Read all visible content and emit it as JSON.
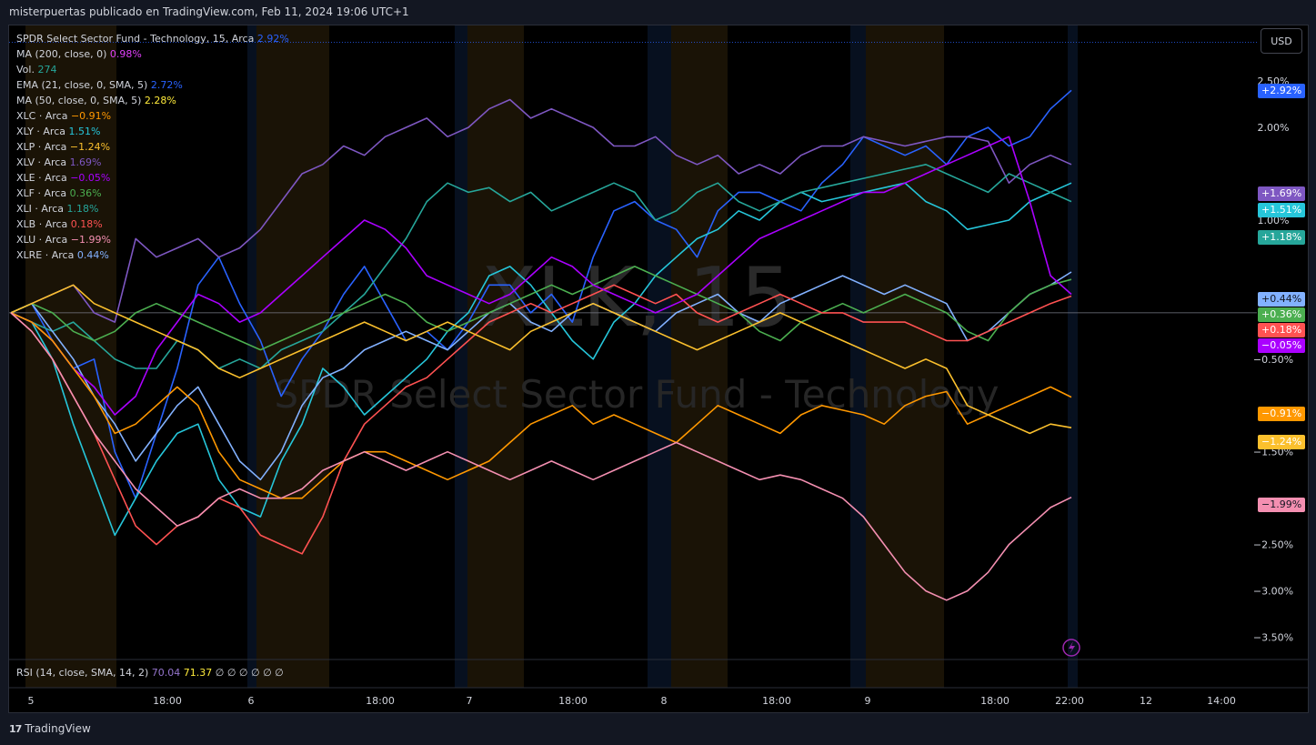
{
  "header": {
    "text": "misterpuertas publicado en TradingView.com, Feb 11, 2024 19:06 UTC+1"
  },
  "currency": "USD",
  "watermark": {
    "line1": "XLK, 15",
    "line2": "SPDR Select Sector Fund - Technology"
  },
  "legend": [
    {
      "name": "SPDR Select Sector Fund - Technology, 15, Arca",
      "value": "2.92%",
      "color": "#2962ff"
    },
    {
      "name": "MA (200, close, 0)",
      "value": "0.98%",
      "color": "#e040fb"
    },
    {
      "name": "Vol.",
      "value": "274",
      "color": "#26a69a"
    },
    {
      "name": "EMA (21, close, 0, SMA, 5)",
      "value": "2.72%",
      "color": "#2962ff"
    },
    {
      "name": "MA (50, close, 0, SMA, 5)",
      "value": "2.28%",
      "color": "#ffeb3b"
    },
    {
      "name": "XLC · Arca",
      "value": "−0.91%",
      "color": "#ff9800"
    },
    {
      "name": "XLY · Arca",
      "value": "1.51%",
      "color": "#26c6da"
    },
    {
      "name": "XLP · Arca",
      "value": "−1.24%",
      "color": "#fbc02d"
    },
    {
      "name": "XLV · Arca",
      "value": "1.69%",
      "color": "#7e57c2"
    },
    {
      "name": "XLE · Arca",
      "value": "−0.05%",
      "color": "#aa00ff"
    },
    {
      "name": "XLF · Arca",
      "value": "0.36%",
      "color": "#4caf50"
    },
    {
      "name": "XLI · Arca",
      "value": "1.18%",
      "color": "#26a69a"
    },
    {
      "name": "XLB · Arca",
      "value": "0.18%",
      "color": "#ff5252"
    },
    {
      "name": "XLU · Arca",
      "value": "−1.99%",
      "color": "#f48fb1"
    },
    {
      "name": "XLRE · Arca",
      "value": "0.44%",
      "color": "#82b1ff"
    }
  ],
  "rsi_legend": {
    "name": "RSI (14, close, SMA, 14, 2)",
    "value1": "70.04",
    "value2": "71.37",
    "rest": "∅ ∅ ∅ ∅ ∅ ∅"
  },
  "footer": {
    "brand": "TradingView"
  },
  "chart_data": {
    "type": "line",
    "y_unit": "%",
    "ylim": [
      -3.75,
      3.1
    ],
    "y_ticks": [
      2.5,
      2.0,
      1.0,
      -0.5,
      -1.5,
      -2.5,
      -3.0,
      -3.5
    ],
    "y_tick_labels": [
      "2.50%",
      "2.00%",
      "1.00%",
      "−0.50%",
      "−1.50%",
      "−2.50%",
      "−3.00%",
      "−3.50%"
    ],
    "x_ticks": [
      "5",
      "18:00",
      "6",
      "18:00",
      "7",
      "18:00",
      "8",
      "18:00",
      "9",
      "18:00",
      "22:00",
      "12",
      "14:00"
    ],
    "x_labels_idx": [
      0,
      7,
      12,
      19,
      24,
      31,
      36,
      43,
      48,
      55,
      58,
      62,
      66
    ],
    "n_points": 72,
    "series": [
      {
        "name": "XLK",
        "color": "#2962ff",
        "label": "+2.92%",
        "last": 2.92,
        "values": [
          0,
          0.1,
          -0.3,
          -0.6,
          -0.5,
          -1.5,
          -2.0,
          -1.3,
          -0.6,
          0.3,
          0.6,
          0.1,
          -0.3,
          -0.9,
          -0.5,
          -0.2,
          0.2,
          0.5,
          0.1,
          -0.3,
          -0.2,
          -0.4,
          -0.1,
          0.3,
          0.3,
          0.0,
          0.2,
          -0.1,
          0.6,
          1.1,
          1.2,
          1.0,
          0.9,
          0.6,
          1.1,
          1.3,
          1.3,
          1.2,
          1.1,
          1.4,
          1.6,
          1.9,
          1.8,
          1.7,
          1.8,
          1.6,
          1.9,
          2.0,
          1.8,
          1.9,
          2.2,
          2.4,
          2.6,
          2.7,
          2.8,
          2.9,
          2.92,
          2.88,
          2.92,
          2.92,
          2.92,
          2.92,
          2.92,
          2.92,
          2.92,
          2.92,
          2.92,
          2.92,
          2.92,
          2.92,
          2.92,
          2.92
        ]
      },
      {
        "name": "XLV",
        "color": "#7e57c2",
        "label": "+1.69%",
        "last": 1.69,
        "values": [
          0,
          0.1,
          0.2,
          0.3,
          0.0,
          -0.1,
          0.8,
          0.6,
          0.7,
          0.8,
          0.6,
          0.7,
          0.9,
          1.2,
          1.5,
          1.6,
          1.8,
          1.7,
          1.9,
          2.0,
          2.1,
          1.9,
          2.0,
          2.2,
          2.3,
          2.1,
          2.2,
          2.1,
          2.0,
          1.8,
          1.8,
          1.9,
          1.7,
          1.6,
          1.7,
          1.5,
          1.6,
          1.5,
          1.7,
          1.8,
          1.8,
          1.9,
          1.85,
          1.8,
          1.85,
          1.9,
          1.9,
          1.85,
          1.4,
          1.6,
          1.7,
          1.6,
          1.5,
          1.6,
          1.6,
          1.69,
          1.69,
          1.69,
          1.69,
          1.69,
          1.69,
          1.69,
          1.69,
          1.69,
          1.69,
          1.69,
          1.69,
          1.69,
          1.69,
          1.69,
          1.69,
          1.69
        ]
      },
      {
        "name": "XLY",
        "color": "#26c6da",
        "label": "+1.51%",
        "last": 1.51,
        "values": [
          0,
          -0.1,
          -0.5,
          -1.2,
          -1.8,
          -2.4,
          -2.0,
          -1.6,
          -1.3,
          -1.2,
          -1.8,
          -2.1,
          -2.2,
          -1.6,
          -1.2,
          -0.6,
          -0.8,
          -1.1,
          -0.9,
          -0.7,
          -0.5,
          -0.2,
          0.0,
          0.4,
          0.5,
          0.3,
          0.0,
          -0.3,
          -0.5,
          -0.1,
          0.1,
          0.4,
          0.6,
          0.8,
          0.9,
          1.1,
          1.0,
          1.2,
          1.3,
          1.2,
          1.25,
          1.3,
          1.35,
          1.4,
          1.2,
          1.1,
          0.9,
          0.95,
          1.0,
          1.2,
          1.3,
          1.4,
          1.51,
          1.51,
          1.51,
          1.51,
          1.51,
          1.51,
          1.51,
          1.51,
          1.51,
          1.51,
          1.51,
          1.51,
          1.51,
          1.51,
          1.51,
          1.51,
          1.51,
          1.51,
          1.51,
          1.51
        ]
      },
      {
        "name": "XLI",
        "color": "#26a69a",
        "label": "+1.18%",
        "last": 1.18,
        "values": [
          0,
          -0.1,
          -0.2,
          -0.1,
          -0.3,
          -0.5,
          -0.6,
          -0.6,
          -0.3,
          -0.4,
          -0.6,
          -0.5,
          -0.6,
          -0.4,
          -0.3,
          -0.2,
          0.0,
          0.2,
          0.5,
          0.8,
          1.2,
          1.4,
          1.3,
          1.35,
          1.2,
          1.3,
          1.1,
          1.2,
          1.3,
          1.4,
          1.3,
          1.0,
          1.1,
          1.3,
          1.4,
          1.2,
          1.1,
          1.2,
          1.3,
          1.35,
          1.4,
          1.45,
          1.5,
          1.55,
          1.6,
          1.5,
          1.4,
          1.3,
          1.5,
          1.4,
          1.3,
          1.2,
          1.18,
          1.18,
          1.18,
          1.18,
          1.18,
          1.18,
          1.18,
          1.18,
          1.18,
          1.18,
          1.18,
          1.18,
          1.18,
          1.18,
          1.18,
          1.18,
          1.18,
          1.18,
          1.18,
          1.18
        ]
      },
      {
        "name": "XLRE",
        "color": "#82b1ff",
        "label": "+0.44%",
        "last": 0.44,
        "values": [
          0,
          0.1,
          -0.2,
          -0.5,
          -0.9,
          -1.2,
          -1.6,
          -1.3,
          -1.0,
          -0.8,
          -1.2,
          -1.6,
          -1.8,
          -1.5,
          -1.0,
          -0.7,
          -0.6,
          -0.4,
          -0.3,
          -0.2,
          -0.3,
          -0.4,
          -0.2,
          0.0,
          0.1,
          -0.1,
          -0.2,
          0.0,
          0.1,
          0.0,
          -0.1,
          -0.2,
          0.0,
          0.1,
          0.2,
          0.0,
          -0.1,
          0.1,
          0.2,
          0.3,
          0.4,
          0.3,
          0.2,
          0.3,
          0.2,
          0.1,
          -0.3,
          -0.2,
          0.0,
          0.2,
          0.3,
          0.44,
          0.44,
          0.44,
          0.44,
          0.44,
          0.44,
          0.44,
          0.44,
          0.44,
          0.44,
          0.44,
          0.44,
          0.44,
          0.44,
          0.44,
          0.44,
          0.44,
          0.44,
          0.44,
          0.44,
          0.44
        ]
      },
      {
        "name": "XLF",
        "color": "#4caf50",
        "label": "+0.36%",
        "last": 0.36,
        "values": [
          0,
          0.1,
          0.0,
          -0.2,
          -0.3,
          -0.2,
          0.0,
          0.1,
          0.0,
          -0.1,
          -0.2,
          -0.3,
          -0.4,
          -0.3,
          -0.2,
          -0.1,
          0.0,
          0.1,
          0.2,
          0.1,
          -0.1,
          -0.2,
          -0.1,
          0.0,
          0.1,
          0.2,
          0.3,
          0.2,
          0.3,
          0.4,
          0.5,
          0.4,
          0.3,
          0.2,
          0.1,
          0.0,
          -0.2,
          -0.3,
          -0.1,
          0.0,
          0.1,
          0.0,
          0.1,
          0.2,
          0.1,
          0.0,
          -0.2,
          -0.3,
          0.0,
          0.2,
          0.3,
          0.36,
          0.36,
          0.36,
          0.36,
          0.36,
          0.36,
          0.36,
          0.36,
          0.36,
          0.36,
          0.36,
          0.36,
          0.36,
          0.36,
          0.36,
          0.36,
          0.36,
          0.36,
          0.36,
          0.36,
          0.36
        ]
      },
      {
        "name": "XLB",
        "color": "#ff5252",
        "label": "+0.18%",
        "last": 0.18,
        "values": [
          0,
          -0.2,
          -0.5,
          -0.9,
          -1.3,
          -1.8,
          -2.3,
          -2.5,
          -2.3,
          -2.2,
          -2.0,
          -2.1,
          -2.4,
          -2.5,
          -2.6,
          -2.2,
          -1.6,
          -1.2,
          -1.0,
          -0.8,
          -0.7,
          -0.5,
          -0.3,
          -0.1,
          0.0,
          0.1,
          0.0,
          0.1,
          0.2,
          0.3,
          0.2,
          0.1,
          0.2,
          0.0,
          -0.1,
          0.0,
          0.1,
          0.2,
          0.1,
          0.0,
          0.0,
          -0.1,
          -0.1,
          -0.1,
          -0.2,
          -0.3,
          -0.3,
          -0.2,
          -0.1,
          0.0,
          0.1,
          0.18,
          0.18,
          0.18,
          0.18,
          0.18,
          0.18,
          0.18,
          0.18,
          0.18,
          0.18,
          0.18,
          0.18,
          0.18,
          0.18,
          0.18,
          0.18,
          0.18,
          0.18,
          0.18,
          0.18,
          0.18
        ]
      },
      {
        "name": "XLE",
        "color": "#aa00ff",
        "label": "−0.05%",
        "last": -0.05,
        "values": [
          0,
          -0.1,
          -0.3,
          -0.6,
          -0.8,
          -1.1,
          -0.9,
          -0.4,
          -0.1,
          0.2,
          0.1,
          -0.1,
          0.0,
          0.2,
          0.4,
          0.6,
          0.8,
          1.0,
          0.9,
          0.7,
          0.4,
          0.3,
          0.2,
          0.1,
          0.2,
          0.4,
          0.6,
          0.5,
          0.3,
          0.2,
          0.1,
          0.0,
          0.1,
          0.2,
          0.4,
          0.6,
          0.8,
          0.9,
          1.0,
          1.1,
          1.2,
          1.3,
          1.3,
          1.4,
          1.5,
          1.6,
          1.7,
          1.8,
          1.9,
          1.2,
          0.4,
          0.2,
          0.0,
          -0.05,
          -0.05,
          -0.05,
          -0.05,
          -0.05,
          -0.05,
          -0.05,
          -0.05,
          -0.05,
          -0.05,
          -0.05,
          -0.05,
          -0.05,
          -0.05,
          -0.05,
          -0.05,
          -0.05,
          -0.05,
          -0.05
        ]
      },
      {
        "name": "XLC",
        "color": "#ff9800",
        "label": "−0.91%",
        "last": -0.91,
        "values": [
          0,
          -0.1,
          -0.3,
          -0.6,
          -0.9,
          -1.3,
          -1.2,
          -1.0,
          -0.8,
          -1.0,
          -1.5,
          -1.8,
          -1.9,
          -2.0,
          -2.0,
          -1.8,
          -1.6,
          -1.5,
          -1.5,
          -1.6,
          -1.7,
          -1.8,
          -1.7,
          -1.6,
          -1.4,
          -1.2,
          -1.1,
          -1.0,
          -1.2,
          -1.1,
          -1.2,
          -1.3,
          -1.4,
          -1.2,
          -1.0,
          -1.1,
          -1.2,
          -1.3,
          -1.1,
          -1.0,
          -1.05,
          -1.1,
          -1.2,
          -1.0,
          -0.9,
          -0.85,
          -1.2,
          -1.1,
          -1.0,
          -0.9,
          -0.8,
          -0.91,
          -0.91,
          -0.91,
          -0.91,
          -0.91,
          -0.91,
          -0.91,
          -0.91,
          -0.91,
          -0.91,
          -0.91,
          -0.91,
          -0.91,
          -0.91,
          -0.91,
          -0.91,
          -0.91,
          -0.91,
          -0.91,
          -0.91,
          -0.91
        ]
      },
      {
        "name": "XLP",
        "color": "#fbc02d",
        "label": "−1.24%",
        "last": -1.24,
        "values": [
          0,
          0.1,
          0.2,
          0.3,
          0.1,
          0.0,
          -0.1,
          -0.2,
          -0.3,
          -0.4,
          -0.6,
          -0.7,
          -0.6,
          -0.5,
          -0.4,
          -0.3,
          -0.2,
          -0.1,
          -0.2,
          -0.3,
          -0.2,
          -0.1,
          -0.2,
          -0.3,
          -0.4,
          -0.2,
          -0.1,
          0.0,
          0.1,
          0.0,
          -0.1,
          -0.2,
          -0.3,
          -0.4,
          -0.3,
          -0.2,
          -0.1,
          0.0,
          -0.1,
          -0.2,
          -0.3,
          -0.4,
          -0.5,
          -0.6,
          -0.5,
          -0.6,
          -1.0,
          -1.1,
          -1.2,
          -1.3,
          -1.2,
          -1.24,
          -1.24,
          -1.24,
          -1.24,
          -1.24,
          -1.24,
          -1.24,
          -1.24,
          -1.24,
          -1.24,
          -1.24,
          -1.24,
          -1.24,
          -1.24,
          -1.24,
          -1.24,
          -1.24,
          -1.24,
          -1.24,
          -1.24,
          -1.24
        ]
      },
      {
        "name": "XLU",
        "color": "#f48fb1",
        "label": "−1.99%",
        "last": -1.99,
        "values": [
          0,
          -0.2,
          -0.5,
          -0.9,
          -1.3,
          -1.6,
          -1.9,
          -2.1,
          -2.3,
          -2.2,
          -2.0,
          -1.9,
          -2.0,
          -2.0,
          -1.9,
          -1.7,
          -1.6,
          -1.5,
          -1.6,
          -1.7,
          -1.6,
          -1.5,
          -1.6,
          -1.7,
          -1.8,
          -1.7,
          -1.6,
          -1.7,
          -1.8,
          -1.7,
          -1.6,
          -1.5,
          -1.4,
          -1.5,
          -1.6,
          -1.7,
          -1.8,
          -1.75,
          -1.8,
          -1.9,
          -2.0,
          -2.2,
          -2.5,
          -2.8,
          -3.0,
          -3.1,
          -3.0,
          -2.8,
          -2.5,
          -2.3,
          -2.1,
          -1.99,
          -1.99,
          -1.99,
          -1.99,
          -1.99,
          -1.99,
          -1.99,
          -1.99,
          -1.99,
          -1.99,
          -1.99,
          -1.99,
          -1.99,
          -1.99,
          -1.99,
          -1.99,
          -1.99,
          -1.99,
          -1.99,
          -1.99,
          -1.99
        ]
      }
    ]
  }
}
